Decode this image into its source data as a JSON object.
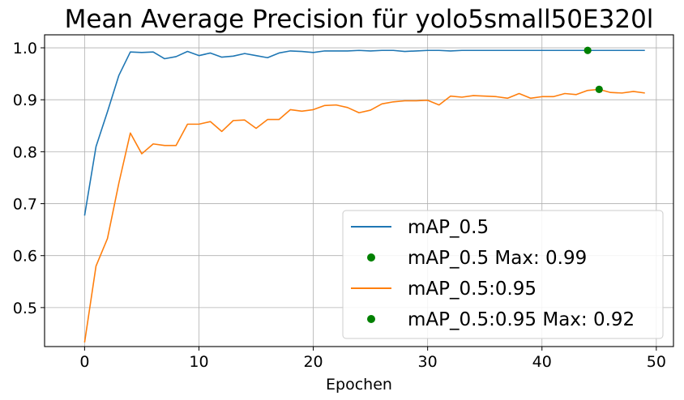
{
  "chart_data": {
    "type": "line",
    "title": "Mean Average Precision für yolo5small50E320l",
    "xlabel": "Epochen",
    "ylabel": "",
    "xlim": [
      -3.5,
      51.5
    ],
    "ylim": [
      0.425,
      1.025
    ],
    "xticks": [
      0,
      10,
      20,
      30,
      40,
      50
    ],
    "yticks": [
      0.5,
      0.6,
      0.7,
      0.8,
      0.9,
      1.0
    ],
    "xtick_labels": [
      "0",
      "10",
      "20",
      "30",
      "40",
      "50"
    ],
    "ytick_labels": [
      "0.5",
      "0.6",
      "0.7",
      "0.8",
      "0.9",
      "1.0"
    ],
    "grid": true,
    "legend_position": "bottom-right",
    "x": [
      0,
      1,
      2,
      3,
      4,
      5,
      6,
      7,
      8,
      9,
      10,
      11,
      12,
      13,
      14,
      15,
      16,
      17,
      18,
      19,
      20,
      21,
      22,
      23,
      24,
      25,
      26,
      27,
      28,
      29,
      30,
      31,
      32,
      33,
      34,
      35,
      36,
      37,
      38,
      39,
      40,
      41,
      42,
      43,
      44,
      45,
      46,
      47,
      48,
      49
    ],
    "series": [
      {
        "name": "mAP_0.5",
        "color": "#1f77b4",
        "values": [
          0.677,
          0.81,
          0.877,
          0.947,
          0.992,
          0.991,
          0.992,
          0.979,
          0.983,
          0.993,
          0.985,
          0.99,
          0.982,
          0.984,
          0.989,
          0.985,
          0.981,
          0.99,
          0.994,
          0.993,
          0.991,
          0.994,
          0.994,
          0.994,
          0.995,
          0.994,
          0.995,
          0.995,
          0.993,
          0.994,
          0.995,
          0.995,
          0.994,
          0.995,
          0.995,
          0.995,
          0.995,
          0.995,
          0.995,
          0.995,
          0.995,
          0.995,
          0.995,
          0.995,
          0.995,
          0.995,
          0.995,
          0.995,
          0.995,
          0.995
        ]
      },
      {
        "name": "mAP_0.5:0.95",
        "color": "#ff7f0e",
        "values": [
          0.433,
          0.58,
          0.633,
          0.74,
          0.836,
          0.796,
          0.815,
          0.812,
          0.812,
          0.853,
          0.853,
          0.858,
          0.839,
          0.86,
          0.861,
          0.845,
          0.862,
          0.862,
          0.881,
          0.878,
          0.881,
          0.889,
          0.89,
          0.885,
          0.875,
          0.88,
          0.892,
          0.896,
          0.898,
          0.898,
          0.899,
          0.89,
          0.907,
          0.905,
          0.908,
          0.907,
          0.906,
          0.903,
          0.912,
          0.903,
          0.906,
          0.906,
          0.912,
          0.91,
          0.918,
          0.92,
          0.914,
          0.913,
          0.916,
          0.913
        ]
      }
    ],
    "max_markers": [
      {
        "name": "mAP_0.5 Max: 0.99",
        "x": 44,
        "y": 0.995,
        "color": "#008000"
      },
      {
        "name": "mAP_0.5:0.95 Max: 0.92",
        "x": 45,
        "y": 0.92,
        "color": "#008000"
      }
    ],
    "legend": [
      {
        "label": "mAP_0.5",
        "kind": "line",
        "color": "#1f77b4"
      },
      {
        "label": "mAP_0.5 Max: 0.99",
        "kind": "dot",
        "color": "#008000"
      },
      {
        "label": "mAP_0.5:0.95",
        "kind": "line",
        "color": "#ff7f0e"
      },
      {
        "label": "mAP_0.5:0.95 Max: 0.92",
        "kind": "dot",
        "color": "#008000"
      }
    ]
  }
}
